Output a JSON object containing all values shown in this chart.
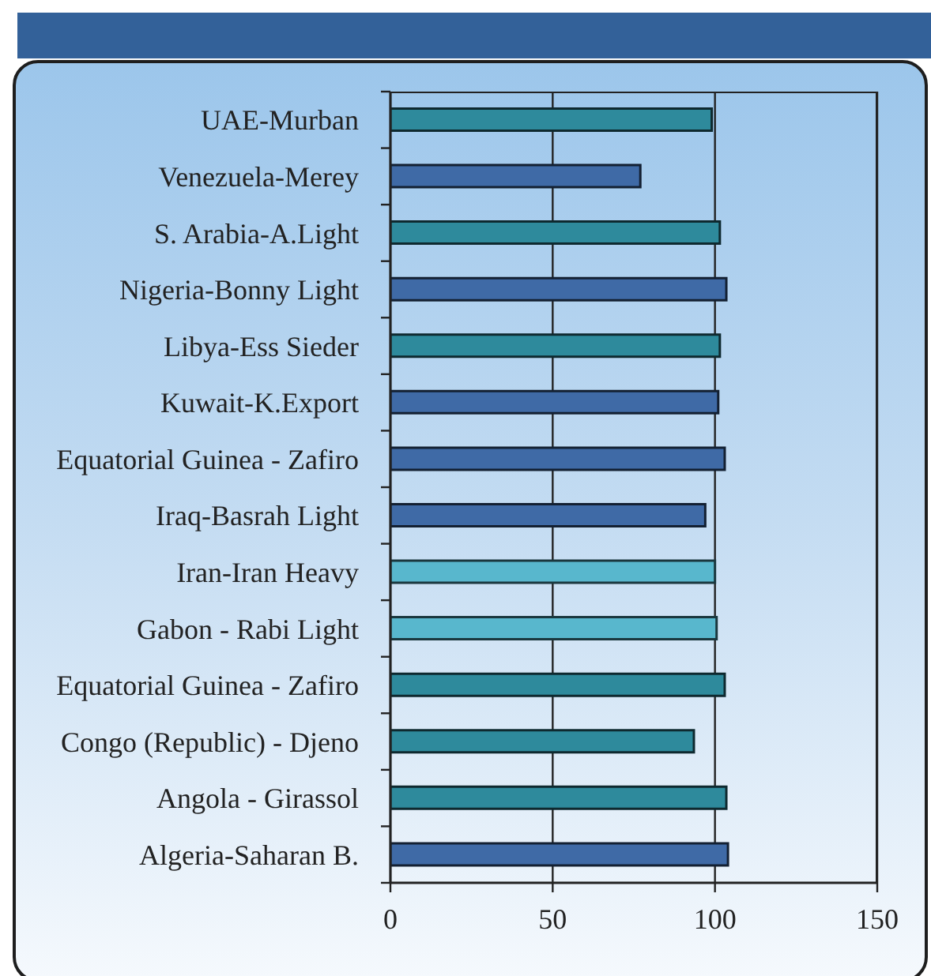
{
  "chart_data": {
    "type": "bar",
    "orientation": "horizontal",
    "categories": [
      "UAE-Murban",
      "Venezuela-Merey",
      "S. Arabia-A.Light",
      "Nigeria-Bonny Light",
      "Libya-Ess Sieder",
      "Kuwait-K.Export",
      "Equatorial Guinea - Zafiro",
      "Iraq-Basrah Light",
      "Iran-Iran Heavy",
      "Gabon - Rabi Light",
      "Equatorial Guinea - Zafiro",
      "Congo (Republic) - Djeno",
      "Angola - Girassol",
      "Algeria-Saharan B."
    ],
    "values": [
      99,
      77,
      101.5,
      103.5,
      101.5,
      101,
      103,
      97,
      100,
      100.5,
      103,
      93.5,
      103.5,
      104
    ],
    "colors": [
      "#2e8a9c",
      "#3f6aa6",
      "#2e8a9c",
      "#3f6aa6",
      "#2e8a9c",
      "#3f6aa6",
      "#3f6aa6",
      "#3f6aa6",
      "#58b7cd",
      "#58b7cd",
      "#2e8a9c",
      "#2e8a9c",
      "#2e8a9c",
      "#3f6aa6"
    ],
    "xlim": [
      0,
      150
    ],
    "xticks": [
      0,
      50,
      100,
      150
    ],
    "grid": "x"
  }
}
